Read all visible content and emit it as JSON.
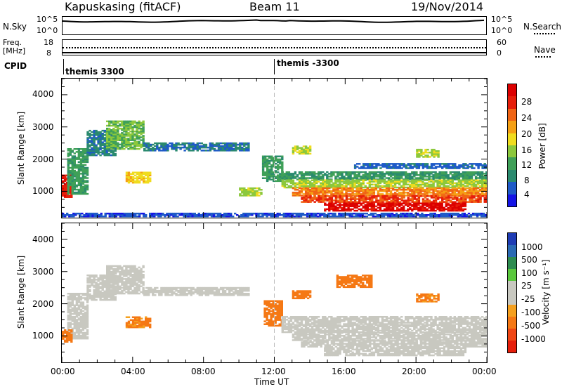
{
  "header": {
    "station": "Kapuskasing (fitACF)",
    "beam": "Beam 11",
    "date": "19/Nov/2014"
  },
  "noise_panel": {
    "left_label": "N.Sky",
    "right_label": "N.Search",
    "tick_top": "10^5",
    "tick_bottom": "10^0"
  },
  "freq_panel": {
    "left_label_1": "Freq.",
    "left_label_2": "[MHz]",
    "left_tick_top": "18",
    "left_tick_bottom": "8",
    "right_tick_top": "60",
    "right_tick_bottom": "0",
    "right_label": "Nave"
  },
  "cpid": {
    "label": "CPID",
    "segments": [
      "themis 3300",
      "themis -3300"
    ]
  },
  "colors": {
    "power_scale": [
      "#1414e6",
      "#1e5ac8",
      "#2a8a6e",
      "#3fa058",
      "#8cc83c",
      "#f0dc1e",
      "#f5a014",
      "#f06414",
      "#e61e0a",
      "#dc0000"
    ],
    "velocity_scale": [
      "#1e3cb4",
      "#2a6ab4",
      "#2d8c50",
      "#5ac83c",
      "#c8c8c0",
      "#c8c8c0",
      "#f5a01e",
      "#f57814",
      "#f04614",
      "#e61e0a"
    ],
    "ground_scatter": "#c8c8c0"
  },
  "chart_data": [
    {
      "type": "heatmap",
      "name": "Power",
      "ylabel": "Slant Range [km]",
      "yticks": [
        "4000",
        "3000",
        "2000",
        "1000"
      ],
      "ylim": [
        180,
        4500
      ],
      "xlim": [
        0,
        24
      ],
      "colorbar_label": "Power [dB]",
      "colorbar_ticks": [
        "28",
        "24",
        "20",
        "16",
        "12",
        "8",
        "4"
      ],
      "color_range": [
        0,
        30
      ],
      "regions": [
        {
          "t0": 0.0,
          "t1": 0.5,
          "r0": 800,
          "r1": 1500,
          "level": 26
        },
        {
          "t0": 0.3,
          "t1": 1.4,
          "r0": 900,
          "r1": 2300,
          "level": 10
        },
        {
          "t0": 1.4,
          "t1": 3.0,
          "r0": 2100,
          "r1": 2900,
          "level": 7
        },
        {
          "t0": 2.5,
          "t1": 4.6,
          "r0": 2300,
          "r1": 3200,
          "level": 12
        },
        {
          "t0": 4.6,
          "t1": 10.5,
          "r0": 2250,
          "r1": 2500,
          "level": 6
        },
        {
          "t0": 3.6,
          "t1": 5.0,
          "r0": 1250,
          "r1": 1600,
          "level": 17
        },
        {
          "t0": 10.0,
          "t1": 11.2,
          "r0": 850,
          "r1": 1100,
          "level": 14
        },
        {
          "t0": 11.3,
          "t1": 12.4,
          "r0": 1300,
          "r1": 2100,
          "level": 10
        },
        {
          "t0": 12.4,
          "t1": 24.0,
          "r0": 1350,
          "r1": 1600,
          "level": 9
        },
        {
          "t0": 12.4,
          "t1": 24.0,
          "r0": 1100,
          "r1": 1350,
          "level": 14
        },
        {
          "t0": 13.0,
          "t1": 24.0,
          "r0": 850,
          "r1": 1100,
          "level": 21
        },
        {
          "t0": 13.5,
          "t1": 24.0,
          "r0": 650,
          "r1": 850,
          "level": 24
        },
        {
          "t0": 14.8,
          "t1": 22.8,
          "r0": 380,
          "r1": 650,
          "level": 28
        },
        {
          "t0": 13.0,
          "t1": 14.0,
          "r0": 2150,
          "r1": 2400,
          "level": 15
        },
        {
          "t0": 20.0,
          "t1": 21.3,
          "r0": 2050,
          "r1": 2300,
          "level": 14
        },
        {
          "t0": 16.5,
          "t1": 24.0,
          "r0": 1700,
          "r1": 1850,
          "level": 5
        },
        {
          "t0": 0.0,
          "t1": 24.0,
          "r0": 200,
          "r1": 300,
          "level": 4
        }
      ]
    },
    {
      "type": "heatmap",
      "name": "Velocity",
      "ylabel": "Slant Range [km]",
      "yticks": [
        "4000",
        "3000",
        "2000",
        "1000"
      ],
      "ylim": [
        180,
        4500
      ],
      "xlim": [
        0,
        24
      ],
      "xticks": [
        "00:00",
        "04:00",
        "08:00",
        "12:00",
        "16:00",
        "20:00",
        "00:00"
      ],
      "xlabel": "Time UT",
      "colorbar_label": "Velocity [m s⁻¹]",
      "colorbar_ticks": [
        "1000",
        "500",
        "100",
        "25",
        "-25",
        "-100",
        "-500",
        "-1000"
      ],
      "regions": [
        {
          "t0": 0.3,
          "t1": 1.4,
          "r0": 900,
          "r1": 2300,
          "level": "gs"
        },
        {
          "t0": 1.4,
          "t1": 3.0,
          "r0": 2100,
          "r1": 2900,
          "level": "gs"
        },
        {
          "t0": 2.5,
          "t1": 4.6,
          "r0": 2300,
          "r1": 3200,
          "level": "gs"
        },
        {
          "t0": 4.6,
          "t1": 10.5,
          "r0": 2250,
          "r1": 2500,
          "level": "gs"
        },
        {
          "t0": 3.6,
          "t1": 5.0,
          "r0": 1250,
          "r1": 1600,
          "level": -120
        },
        {
          "t0": 0.0,
          "t1": 0.6,
          "r0": 800,
          "r1": 1200,
          "level": -150
        },
        {
          "t0": 11.4,
          "t1": 12.4,
          "r0": 1300,
          "r1": 2100,
          "level": -200
        },
        {
          "t0": 12.4,
          "t1": 24.0,
          "r0": 1350,
          "r1": 1600,
          "level": "gs"
        },
        {
          "t0": 12.4,
          "t1": 24.0,
          "r0": 1100,
          "r1": 1350,
          "level": "gs"
        },
        {
          "t0": 13.0,
          "t1": 24.0,
          "r0": 850,
          "r1": 1100,
          "level": "gs"
        },
        {
          "t0": 13.5,
          "t1": 24.0,
          "r0": 650,
          "r1": 850,
          "level": "gs"
        },
        {
          "t0": 14.8,
          "t1": 22.8,
          "r0": 380,
          "r1": 650,
          "level": "gs"
        },
        {
          "t0": 13.0,
          "t1": 14.0,
          "r0": 2150,
          "r1": 2400,
          "level": -150
        },
        {
          "t0": 20.0,
          "t1": 21.3,
          "r0": 2050,
          "r1": 2300,
          "level": -120
        },
        {
          "t0": 15.5,
          "t1": 17.5,
          "r0": 2500,
          "r1": 2900,
          "level": -200
        }
      ]
    }
  ]
}
